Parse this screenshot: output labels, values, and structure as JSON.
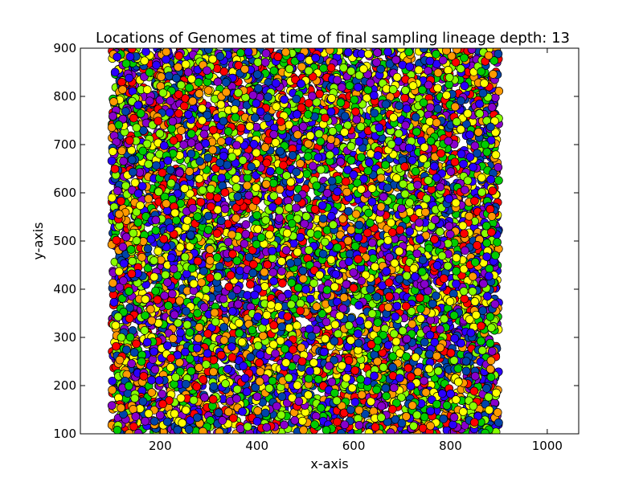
{
  "chart_data": {
    "type": "scatter",
    "title": "Locations of Genomes at time of final sampling lineage depth: 13",
    "xlabel": "x-axis",
    "ylabel": "y-axis",
    "xlim": [
      35,
      1065
    ],
    "ylim": [
      100,
      900
    ],
    "xticks": [
      200,
      400,
      600,
      800,
      1000
    ],
    "yticks": [
      100,
      200,
      300,
      400,
      500,
      600,
      700,
      800,
      900
    ],
    "grid": false,
    "point_region": {
      "x": [
        100,
        900
      ],
      "y": [
        100,
        900
      ]
    },
    "series": [
      {
        "color": "#ff0000"
      },
      {
        "color": "#2a00ff"
      },
      {
        "color": "#00cc00"
      },
      {
        "color": "#ffff00"
      },
      {
        "color": "#ff9900"
      },
      {
        "color": "#8800cc"
      },
      {
        "color": "#88ff00"
      },
      {
        "color": "#0044aa"
      }
    ],
    "gaps": [
      {
        "x": 375,
        "y": 545
      },
      {
        "x": 385,
        "y": 400
      },
      {
        "x": 460,
        "y": 400
      },
      {
        "x": 495,
        "y": 335
      },
      {
        "x": 540,
        "y": 635
      }
    ]
  }
}
